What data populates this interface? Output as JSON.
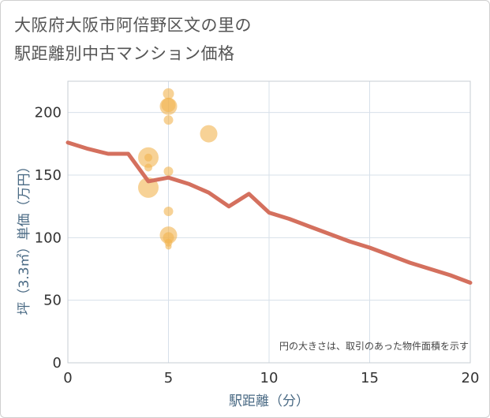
{
  "title": {
    "line1": "大阪府大阪市阿倍野区文の里の",
    "line2": "駅距離別中古マンション価格"
  },
  "note": "円の大きさは、取引のあった物件面積を示す",
  "colors": {
    "line": "#d4705e",
    "bubble": "#f2b450",
    "grid": "#d7e0ea",
    "plot_border": "#c7cdd3"
  },
  "chart_data": {
    "type": "scatter",
    "xlabel": "駅距離（分）",
    "ylabel": "坪（3.3㎡）単価（万円）",
    "xlim": [
      0,
      20
    ],
    "ylim": [
      0,
      225
    ],
    "xticks": [
      0,
      5,
      10,
      15,
      20
    ],
    "yticks": [
      0,
      50,
      100,
      150,
      200
    ],
    "grid": true,
    "series": [
      {
        "kind": "line",
        "points": [
          [
            0,
            176
          ],
          [
            1,
            171
          ],
          [
            2,
            167
          ],
          [
            3,
            167
          ],
          [
            4,
            145
          ],
          [
            5,
            148
          ],
          [
            6,
            143
          ],
          [
            7,
            136
          ],
          [
            8,
            125
          ],
          [
            9,
            135
          ],
          [
            10,
            120
          ],
          [
            11,
            115
          ],
          [
            12,
            109
          ],
          [
            13,
            103
          ],
          [
            14,
            97
          ],
          [
            15,
            92
          ],
          [
            16,
            86
          ],
          [
            17,
            80
          ],
          [
            18,
            75
          ],
          [
            19,
            70
          ],
          [
            20,
            64
          ]
        ]
      },
      {
        "kind": "bubble",
        "points": [
          {
            "x": 4,
            "y": 164,
            "size": 13
          },
          {
            "x": 4,
            "y": 164,
            "size": 5
          },
          {
            "x": 4,
            "y": 156,
            "size": 5
          },
          {
            "x": 4,
            "y": 140,
            "size": 13
          },
          {
            "x": 5,
            "y": 215,
            "size": 7
          },
          {
            "x": 5,
            "y": 206,
            "size": 9
          },
          {
            "x": 5,
            "y": 205,
            "size": 11
          },
          {
            "x": 5,
            "y": 194,
            "size": 6
          },
          {
            "x": 5,
            "y": 153,
            "size": 6
          },
          {
            "x": 5,
            "y": 121,
            "size": 6
          },
          {
            "x": 5,
            "y": 102,
            "size": 11
          },
          {
            "x": 5,
            "y": 100,
            "size": 7
          },
          {
            "x": 5,
            "y": 96,
            "size": 5
          },
          {
            "x": 5,
            "y": 93,
            "size": 4
          },
          {
            "x": 7,
            "y": 183,
            "size": 11
          }
        ]
      }
    ]
  }
}
